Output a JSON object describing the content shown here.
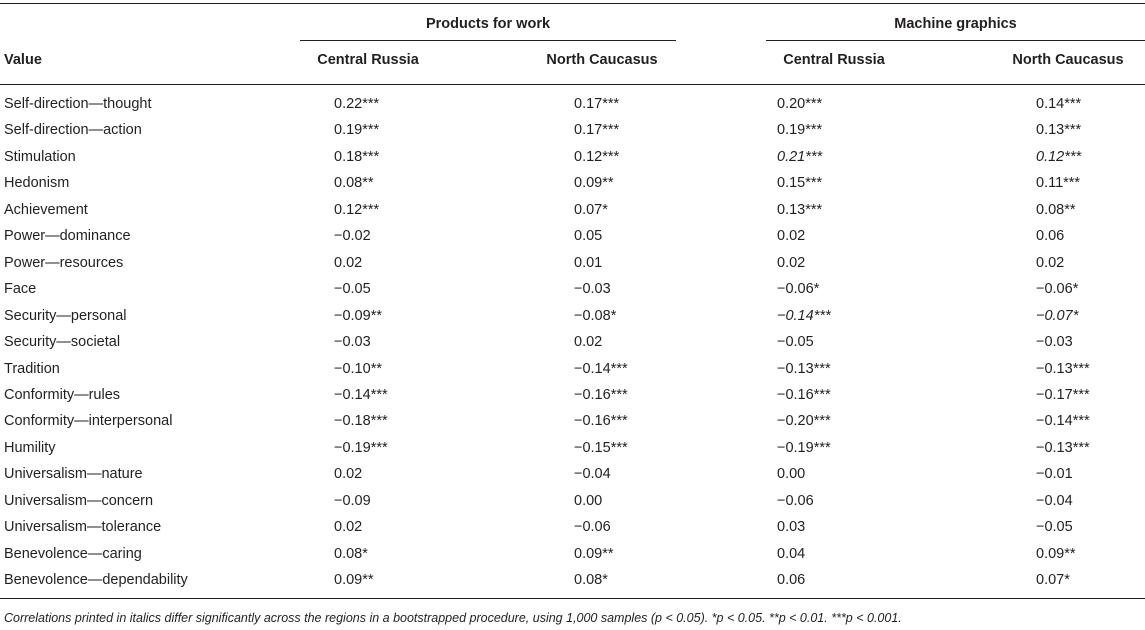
{
  "table": {
    "group_headers": [
      "Products for work",
      "Machine graphics"
    ],
    "column_headers": [
      "Value",
      "Central Russia",
      "North Caucasus",
      "Central Russia",
      "North Caucasus"
    ],
    "rows": [
      {
        "label": "Self-direction—thought",
        "cells": [
          "0.22***",
          "0.17***",
          "0.20***",
          "0.14***"
        ]
      },
      {
        "label": "Self-direction—action",
        "cells": [
          "0.19***",
          "0.17***",
          "0.19***",
          "0.13***"
        ]
      },
      {
        "label": "Stimulation",
        "cells": [
          "0.18***",
          "0.12***",
          "0.21***",
          "0.12***"
        ],
        "italic_cells": [
          2,
          3
        ]
      },
      {
        "label": "Hedonism",
        "cells": [
          "0.08**",
          "0.09**",
          "0.15***",
          "0.11***"
        ]
      },
      {
        "label": "Achievement",
        "cells": [
          "0.12***",
          "0.07*",
          "0.13***",
          "0.08**"
        ]
      },
      {
        "label": "Power—dominance",
        "cells": [
          "−0.02",
          "0.05",
          "0.02",
          "0.06"
        ]
      },
      {
        "label": "Power—resources",
        "cells": [
          "0.02",
          "0.01",
          "0.02",
          "0.02"
        ]
      },
      {
        "label": "Face",
        "cells": [
          "−0.05",
          "−0.03",
          "−0.06*",
          "−0.06*"
        ]
      },
      {
        "label": "Security—personal",
        "cells": [
          "−0.09**",
          "−0.08*",
          "−0.14***",
          "−0.07*"
        ],
        "italic_cells": [
          2,
          3
        ]
      },
      {
        "label": "Security—societal",
        "cells": [
          "−0.03",
          "0.02",
          "−0.05",
          "−0.03"
        ]
      },
      {
        "label": "Tradition",
        "cells": [
          "−0.10**",
          "−0.14***",
          "−0.13***",
          "−0.13***"
        ]
      },
      {
        "label": "Conformity—rules",
        "cells": [
          "−0.14***",
          "−0.16***",
          "−0.16***",
          "−0.17***"
        ]
      },
      {
        "label": "Conformity—interpersonal",
        "cells": [
          "−0.18***",
          "−0.16***",
          "−0.20***",
          "−0.14***"
        ]
      },
      {
        "label": "Humility",
        "cells": [
          "−0.19***",
          "−0.15***",
          "−0.19***",
          "−0.13***"
        ]
      },
      {
        "label": "Universalism—nature",
        "cells": [
          "0.02",
          "−0.04",
          "0.00",
          "−0.01"
        ]
      },
      {
        "label": "Universalism—concern",
        "cells": [
          "−0.09",
          "0.00",
          "−0.06",
          "−0.04"
        ]
      },
      {
        "label": "Universalism—tolerance",
        "cells": [
          "0.02",
          "−0.06",
          "0.03",
          "−0.05"
        ]
      },
      {
        "label": "Benevolence—caring",
        "cells": [
          "0.08*",
          "0.09**",
          "0.04",
          "0.09**"
        ]
      },
      {
        "label": "Benevolence—dependability",
        "cells": [
          "0.09**",
          "0.08*",
          "0.06",
          "0.07*"
        ]
      }
    ],
    "footnote": "Correlations printed in italics differ significantly across the regions in a bootstrapped procedure, using 1,000 samples (p < 0.05). *p < 0.05. **p < 0.01. ***p < 0.001."
  }
}
